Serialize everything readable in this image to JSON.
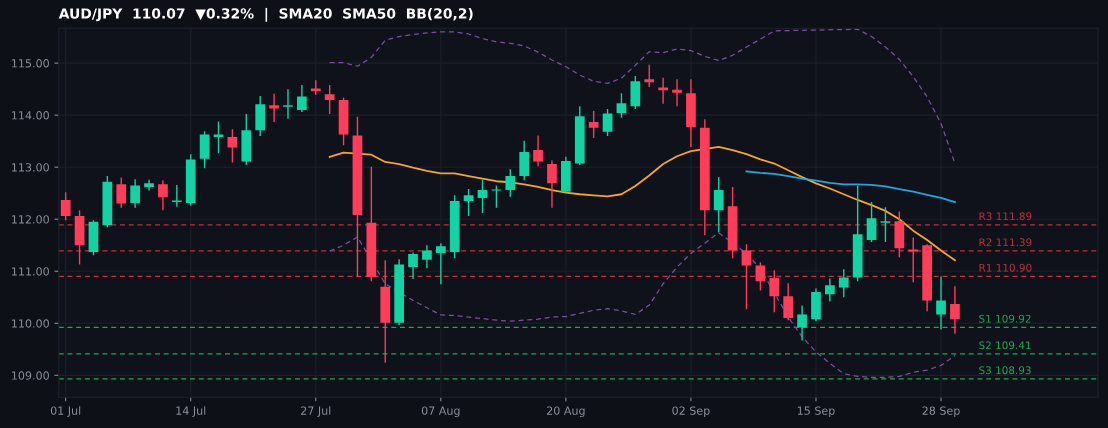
{
  "chart_data": {
    "type": "candlestick",
    "title": "AUD/JPY  110.07  ▼0.32%  |  SMA20  SMA50  BB(20,2)",
    "categories": [
      "01 Jul",
      null,
      null,
      null,
      null,
      null,
      null,
      null,
      null,
      "14 Jul",
      null,
      null,
      null,
      null,
      null,
      null,
      null,
      null,
      "27 Jul",
      null,
      null,
      null,
      null,
      null,
      null,
      null,
      null,
      "07 Aug",
      null,
      null,
      null,
      null,
      null,
      null,
      null,
      null,
      "20 Aug",
      null,
      null,
      null,
      null,
      null,
      null,
      null,
      null,
      "02 Sep",
      null,
      null,
      null,
      null,
      null,
      null,
      null,
      null,
      "15 Sep",
      null,
      null,
      null,
      null,
      null,
      null,
      null,
      null,
      "28 Sep",
      null
    ],
    "ohlc": [
      [
        112.37,
        112.52,
        111.98,
        112.06
      ],
      [
        112.06,
        112.17,
        111.13,
        111.5
      ],
      [
        111.37,
        111.98,
        111.31,
        111.95
      ],
      [
        111.89,
        112.83,
        111.84,
        112.72
      ],
      [
        112.67,
        112.8,
        112.22,
        112.3
      ],
      [
        112.31,
        112.77,
        112.22,
        112.65
      ],
      [
        112.62,
        112.76,
        112.55,
        112.69
      ],
      [
        112.67,
        112.75,
        112.17,
        112.42
      ],
      [
        112.33,
        112.66,
        112.24,
        112.36
      ],
      [
        112.31,
        113.25,
        112.26,
        113.15
      ],
      [
        113.16,
        113.69,
        112.98,
        113.63
      ],
      [
        113.58,
        113.88,
        113.27,
        113.63
      ],
      [
        113.58,
        113.73,
        113.09,
        113.38
      ],
      [
        113.11,
        114.02,
        113.04,
        113.71
      ],
      [
        113.71,
        114.37,
        113.6,
        114.21
      ],
      [
        114.19,
        114.41,
        113.87,
        114.13
      ],
      [
        114.16,
        114.5,
        113.93,
        114.19
      ],
      [
        114.1,
        114.58,
        114.06,
        114.36
      ],
      [
        114.51,
        114.67,
        114.39,
        114.46
      ],
      [
        114.4,
        114.58,
        114.02,
        114.29
      ],
      [
        114.29,
        114.34,
        113.42,
        113.63
      ],
      [
        113.61,
        113.97,
        110.89,
        112.08
      ],
      [
        111.93,
        113.01,
        110.81,
        110.89
      ],
      [
        110.7,
        111.21,
        109.24,
        110.01
      ],
      [
        110.01,
        111.23,
        109.96,
        111.13
      ],
      [
        111.08,
        111.36,
        110.85,
        111.33
      ],
      [
        111.22,
        111.5,
        111.06,
        111.4
      ],
      [
        111.35,
        111.54,
        110.75,
        111.48
      ],
      [
        111.37,
        112.46,
        111.25,
        112.35
      ],
      [
        112.35,
        112.58,
        112.06,
        112.46
      ],
      [
        112.41,
        112.76,
        112.12,
        112.56
      ],
      [
        112.55,
        112.65,
        112.22,
        112.57
      ],
      [
        112.56,
        112.96,
        112.43,
        112.83
      ],
      [
        112.83,
        113.51,
        112.75,
        113.29
      ],
      [
        113.33,
        113.61,
        113.02,
        113.11
      ],
      [
        113.06,
        113.13,
        112.22,
        112.69
      ],
      [
        112.53,
        113.2,
        112.52,
        113.12
      ],
      [
        113.07,
        114.17,
        113.04,
        113.98
      ],
      [
        113.87,
        114.08,
        113.56,
        113.76
      ],
      [
        113.68,
        114.12,
        113.6,
        114.03
      ],
      [
        114.04,
        114.42,
        113.95,
        114.23
      ],
      [
        114.17,
        114.75,
        114.12,
        114.65
      ],
      [
        114.69,
        114.97,
        114.54,
        114.63
      ],
      [
        114.53,
        114.72,
        114.22,
        114.48
      ],
      [
        114.49,
        114.69,
        114.17,
        114.43
      ],
      [
        114.42,
        114.69,
        113.39,
        113.77
      ],
      [
        113.76,
        113.92,
        111.69,
        112.17
      ],
      [
        112.17,
        112.81,
        111.75,
        112.56
      ],
      [
        112.25,
        112.62,
        111.25,
        111.4
      ],
      [
        111.4,
        111.52,
        110.27,
        111.11
      ],
      [
        111.11,
        111.17,
        110.63,
        110.81
      ],
      [
        110.87,
        111.02,
        110.21,
        110.52
      ],
      [
        110.52,
        110.77,
        110.06,
        110.1
      ],
      [
        109.92,
        110.34,
        109.67,
        110.17
      ],
      [
        110.08,
        110.67,
        110.04,
        110.6
      ],
      [
        110.56,
        110.86,
        110.42,
        110.73
      ],
      [
        110.69,
        111.04,
        110.5,
        110.88
      ],
      [
        110.88,
        112.65,
        110.81,
        111.71
      ],
      [
        111.6,
        112.33,
        111.56,
        112.02
      ],
      [
        111.93,
        112.23,
        111.56,
        111.96
      ],
      [
        111.96,
        112.15,
        111.27,
        111.44
      ],
      [
        111.42,
        111.65,
        110.79,
        111.38
      ],
      [
        111.5,
        111.52,
        110.23,
        110.44
      ],
      [
        110.17,
        110.9,
        109.88,
        110.44
      ],
      [
        110.37,
        110.71,
        109.8,
        110.08
      ]
    ],
    "colors": [
      "#ff3d5a",
      "#ff3d5a",
      "#12d3a3",
      "#12d3a3",
      "#ff3d5a",
      "#12d3a3",
      "#12d3a3",
      "#ff3d5a",
      "#12d3a3",
      "#12d3a3",
      "#12d3a3",
      "#12d3a3",
      "#ff3d5a",
      "#12d3a3",
      "#12d3a3",
      "#ff3d5a",
      "#12d3a3",
      "#12d3a3",
      "#ff3d5a",
      "#ff3d5a",
      "#ff3d5a",
      "#ff3d5a",
      "#ff3d5a",
      "#ff3d5a",
      "#12d3a3",
      "#12d3a3",
      "#12d3a3",
      "#12d3a3",
      "#12d3a3",
      "#12d3a3",
      "#12d3a3",
      "#12d3a3",
      "#12d3a3",
      "#12d3a3",
      "#ff3d5a",
      "#ff3d5a",
      "#12d3a3",
      "#12d3a3",
      "#ff3d5a",
      "#12d3a3",
      "#12d3a3",
      "#12d3a3",
      "#ff3d5a",
      "#ff3d5a",
      "#ff3d5a",
      "#ff3d5a",
      "#ff3d5a",
      "#12d3a3",
      "#ff3d5a",
      "#ff3d5a",
      "#ff3d5a",
      "#ff3d5a",
      "#ff3d5a",
      "#12d3a3",
      "#12d3a3",
      "#12d3a3",
      "#12d3a3",
      "#12d3a3",
      "#12d3a3",
      "#12d3a3",
      "#ff3d5a",
      "#ff3d5a",
      "#ff3d5a",
      "#12d3a3",
      "#ff3d5a"
    ],
    "series": [
      {
        "type": "line",
        "color": "#7b4fa0",
        "line_style": "dashed",
        "values": [
          null,
          null,
          null,
          null,
          null,
          null,
          null,
          null,
          null,
          null,
          null,
          null,
          null,
          null,
          null,
          null,
          null,
          null,
          null,
          115.01,
          115.01,
          114.94,
          115.11,
          115.44,
          115.51,
          115.55,
          115.58,
          115.6,
          115.6,
          115.56,
          115.47,
          115.41,
          115.38,
          115.33,
          115.21,
          115.06,
          114.93,
          114.77,
          114.65,
          114.61,
          114.71,
          114.96,
          115.22,
          115.2,
          115.27,
          115.24,
          115.13,
          115.05,
          115.15,
          115.31,
          115.46,
          115.62,
          null,
          null,
          null,
          null,
          null,
          115.65,
          115.51,
          115.31,
          115.07,
          114.74,
          114.35,
          113.84,
          113.07
        ]
      },
      {
        "type": "line",
        "color": "#7b4fa0",
        "line_style": "dashed",
        "values": [
          null,
          null,
          null,
          null,
          null,
          null,
          null,
          null,
          null,
          null,
          null,
          null,
          null,
          null,
          null,
          null,
          null,
          null,
          null,
          111.39,
          111.5,
          111.66,
          null,
          110.76,
          null,
          110.44,
          110.3,
          110.16,
          110.15,
          110.12,
          110.09,
          110.06,
          110.04,
          110.06,
          110.08,
          110.12,
          110.13,
          110.19,
          110.25,
          110.28,
          110.24,
          110.17,
          110.35,
          110.76,
          111.08,
          111.34,
          111.54,
          111.74,
          null,
          111.34,
          111.05,
          null,
          110.12,
          109.74,
          109.45,
          109.23,
          109.03,
          108.98,
          108.96,
          108.96,
          108.98,
          109.06,
          109.1,
          109.19,
          109.38
        ]
      },
      {
        "type": "line",
        "color": "#f5a623",
        "values": [
          null,
          null,
          null,
          null,
          null,
          null,
          null,
          null,
          null,
          null,
          null,
          null,
          null,
          null,
          null,
          null,
          null,
          null,
          null,
          113.2,
          113.28,
          null,
          113.24,
          113.1,
          113.06,
          112.99,
          112.93,
          112.88,
          112.88,
          112.83,
          112.78,
          112.73,
          112.71,
          112.67,
          112.62,
          112.56,
          112.51,
          112.48,
          112.46,
          112.44,
          112.48,
          112.64,
          112.84,
          113.06,
          113.21,
          113.31,
          null,
          113.39,
          113.33,
          113.25,
          113.15,
          113.07,
          112.94,
          112.81,
          112.69,
          112.59,
          112.48,
          112.37,
          112.27,
          112.16,
          112.0,
          111.78,
          111.6,
          111.4,
          111.21
        ]
      },
      {
        "type": "line",
        "color": "#1ea7e1",
        "values": [
          null,
          null,
          null,
          null,
          null,
          null,
          null,
          null,
          null,
          null,
          null,
          null,
          null,
          null,
          null,
          null,
          null,
          null,
          null,
          null,
          null,
          null,
          null,
          null,
          null,
          null,
          null,
          null,
          null,
          null,
          null,
          null,
          null,
          null,
          null,
          null,
          null,
          null,
          null,
          null,
          null,
          null,
          null,
          null,
          null,
          null,
          null,
          null,
          null,
          112.92,
          112.89,
          112.87,
          112.83,
          112.78,
          112.74,
          112.7,
          112.67,
          112.67,
          112.66,
          112.63,
          112.58,
          112.53,
          112.47,
          112.41,
          112.33
        ]
      }
    ],
    "ref_lines": [
      {
        "axis": "y",
        "value": 111.89,
        "label": "R3 111.89",
        "color": "#c0303f",
        "line_style": "dashed"
      },
      {
        "axis": "y",
        "value": 111.39,
        "label": "R2 111.39",
        "color": "#c0303f",
        "line_style": "dashed"
      },
      {
        "axis": "y",
        "value": 110.9,
        "label": "R1 110.90",
        "color": "#c0303f",
        "line_style": "dashed"
      },
      {
        "axis": "y",
        "value": 109.92,
        "label": "S1 109.92",
        "color": "#22a552",
        "line_style": "dashed"
      },
      {
        "axis": "y",
        "value": 109.41,
        "label": "S2 109.41",
        "color": "#22a552",
        "line_style": "dashed"
      },
      {
        "axis": "y",
        "value": 108.93,
        "label": "S3 108.93",
        "color": "#22a552",
        "line_style": "dashed"
      }
    ],
    "ylim": [
      108.58,
      115.67
    ],
    "yticks": [
      {
        "value": 109,
        "label": "109.00"
      },
      {
        "value": 110,
        "label": "110.00"
      },
      {
        "value": 111,
        "label": "111.00"
      },
      {
        "value": 112,
        "label": "112.00"
      },
      {
        "value": 113,
        "label": "113.00"
      },
      {
        "value": 114,
        "label": "114.00"
      },
      {
        "value": 115,
        "label": "115.00"
      }
    ],
    "grid": true
  }
}
